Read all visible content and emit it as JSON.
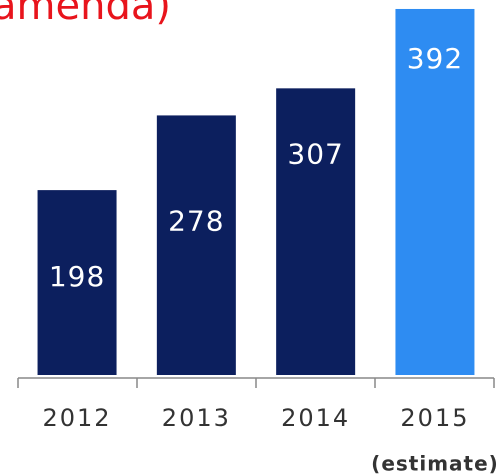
{
  "chart_data": {
    "type": "bar",
    "title": "amenda)",
    "categories": [
      "2012",
      "2013",
      "2014",
      "2015"
    ],
    "values": [
      198,
      278,
      307,
      392
    ],
    "colors": [
      "#0c1f5e",
      "#0c1f5e",
      "#0c1f5e",
      "#2e8cf2"
    ],
    "annotations": [
      "(estimate)"
    ],
    "ylim": [
      0,
      400
    ]
  }
}
